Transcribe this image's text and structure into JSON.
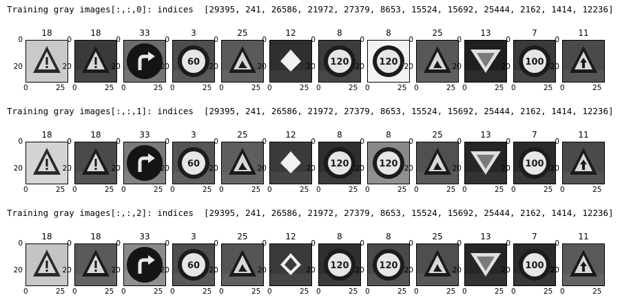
{
  "rows": [
    {
      "header": "Training gray images[:,:,0]: indices  [29395, 241, 26586, 21972, 27379, 8653, 15524, 15692, 25444, 2162, 1414, 12236]",
      "labels": [
        "18",
        "18",
        "33",
        "3",
        "25",
        "12",
        "8",
        "8",
        "25",
        "13",
        "7",
        "11"
      ],
      "icons": [
        "caution-triangle-sign",
        "caution-triangle-sign",
        "turn-right-ahead-sign",
        "speed-limit-60-sign",
        "road-work-sign",
        "priority-road-sign",
        "speed-limit-120-sign",
        "speed-limit-120-sign",
        "road-work-sign",
        "yield-sign",
        "speed-limit-100-sign",
        "right-of-way-sign"
      ]
    },
    {
      "header": "Training gray images[:,:,1]: indices  [29395, 241, 26586, 21972, 27379, 8653, 15524, 15692, 25444, 2162, 1414, 12236]",
      "labels": [
        "18",
        "18",
        "33",
        "3",
        "25",
        "12",
        "8",
        "8",
        "25",
        "13",
        "7",
        "11"
      ],
      "icons": [
        "caution-triangle-sign",
        "caution-triangle-sign",
        "turn-right-ahead-sign",
        "speed-limit-60-sign",
        "road-work-sign",
        "priority-road-sign",
        "speed-limit-120-sign",
        "speed-limit-120-sign",
        "road-work-sign",
        "yield-sign",
        "speed-limit-100-sign",
        "right-of-way-sign"
      ]
    },
    {
      "header": "Training gray images[:,:,2]: indices  [29395, 241, 26586, 21972, 27379, 8653, 15524, 15692, 25444, 2162, 1414, 12236]",
      "labels": [
        "18",
        "18",
        "33",
        "3",
        "25",
        "12",
        "8",
        "8",
        "25",
        "13",
        "7",
        "11"
      ],
      "icons": [
        "caution-triangle-sign",
        "caution-triangle-sign",
        "turn-right-ahead-sign",
        "speed-limit-60-sign",
        "road-work-sign",
        "priority-road-sign",
        "speed-limit-120-sign",
        "speed-limit-120-sign",
        "road-work-sign",
        "yield-sign",
        "speed-limit-100-sign",
        "right-of-way-sign"
      ]
    }
  ],
  "axis": {
    "yticks": [
      "0",
      "20"
    ],
    "xticks": [
      "0",
      "25"
    ]
  },
  "sign_text": {
    "speed60": "60",
    "speed120": "120",
    "speed100": "100"
  }
}
